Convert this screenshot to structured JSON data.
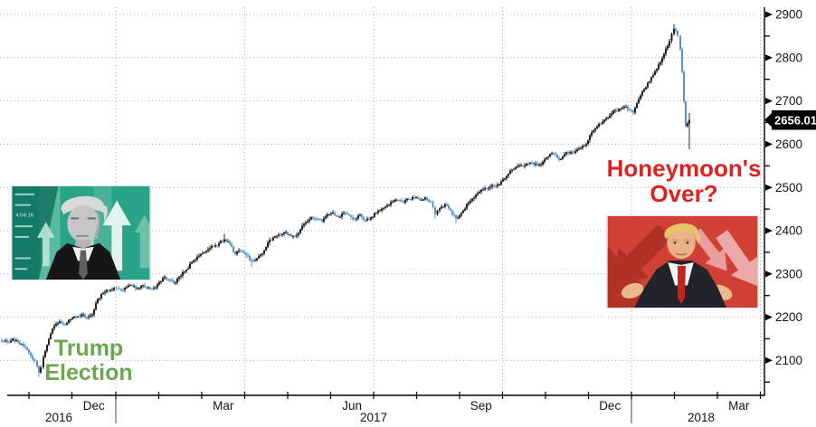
{
  "chart_data": {
    "type": "candlestick",
    "title": "",
    "description": "S&P 500 daily candlestick chart, Oct 2016 - Feb 2018",
    "last_price": "2656.01",
    "x_axis": {
      "month_labels": [
        {
          "label": "Dec",
          "x": 103.8
        },
        {
          "label": "Mar",
          "x": 246.8
        },
        {
          "label": "Jun",
          "x": 389.2
        },
        {
          "label": "Sep",
          "x": 531.8
        },
        {
          "label": "Dec",
          "x": 674.2
        },
        {
          "label": "Mar",
          "x": 816.8
        }
      ],
      "year_labels": [
        {
          "label": "2016",
          "x": 65
        },
        {
          "label": "2017",
          "x": 413
        },
        {
          "label": "2018",
          "x": 775
        }
      ],
      "month_tick_x": [
        32,
        79.5,
        128,
        175.5,
        223,
        270.5,
        318,
        365.5,
        413,
        460.5,
        508,
        555.5,
        603,
        650.5,
        698,
        745.5,
        793,
        840.5
      ],
      "quarter_gridline_x": [
        128,
        270.5,
        413,
        555.5,
        698,
        840.5
      ],
      "year_separator_x": [
        128,
        698
      ]
    },
    "y_axis": {
      "major_ticks": [
        2900,
        2800,
        2700,
        2600,
        2500,
        2400,
        2300,
        2200,
        2100
      ],
      "minor_step": 50,
      "ylim": [
        2040,
        2915
      ],
      "side": "right"
    },
    "keypoints_note": "x is pixel position along time axis (Oct 2016 - Mar 2018); p is price; optional lo/hi wick extremes",
    "keypoints": [
      [
        2,
        2145
      ],
      [
        8,
        2142
      ],
      [
        14,
        2150
      ],
      [
        20,
        2142
      ],
      [
        26,
        2133
      ],
      [
        32,
        2118
      ],
      [
        38,
        2098
      ],
      [
        41,
        2086
      ],
      [
        43,
        2072,
        2062,
        null
      ],
      [
        45,
        2084
      ],
      [
        48,
        2108
      ],
      [
        52,
        2136
      ],
      [
        56,
        2162
      ],
      [
        60,
        2180
      ],
      [
        66,
        2190
      ],
      [
        72,
        2183
      ],
      [
        78,
        2195
      ],
      [
        84,
        2201
      ],
      [
        90,
        2206
      ],
      [
        96,
        2199
      ],
      [
        102,
        2206
      ],
      [
        108,
        2242
      ],
      [
        114,
        2256
      ],
      [
        120,
        2262
      ],
      [
        126,
        2268
      ],
      [
        134,
        2263
      ],
      [
        140,
        2270
      ],
      [
        146,
        2272
      ],
      [
        152,
        2267
      ],
      [
        158,
        2274
      ],
      [
        164,
        2269
      ],
      [
        170,
        2267
      ],
      [
        176,
        2281
      ],
      [
        182,
        2293
      ],
      [
        188,
        2286
      ],
      [
        194,
        2280
      ],
      [
        200,
        2296
      ],
      [
        206,
        2310
      ],
      [
        212,
        2327
      ],
      [
        218,
        2340
      ],
      [
        224,
        2349
      ],
      [
        230,
        2357
      ],
      [
        236,
        2364
      ],
      [
        242,
        2371
      ],
      [
        248,
        2380,
        null,
        2393
      ],
      [
        254,
        2369
      ],
      [
        260,
        2346
      ],
      [
        266,
        2353
      ],
      [
        272,
        2343
      ],
      [
        278,
        2330,
        2316,
        null
      ],
      [
        284,
        2336
      ],
      [
        290,
        2347
      ],
      [
        296,
        2372
      ],
      [
        302,
        2384
      ],
      [
        308,
        2391
      ],
      [
        314,
        2396
      ],
      [
        320,
        2391
      ],
      [
        326,
        2387
      ],
      [
        332,
        2403
      ],
      [
        338,
        2419
      ],
      [
        344,
        2431
      ],
      [
        350,
        2427
      ],
      [
        356,
        2421
      ],
      [
        362,
        2437
      ],
      [
        368,
        2442
      ],
      [
        374,
        2431
      ],
      [
        380,
        2441
      ],
      [
        386,
        2435
      ],
      [
        392,
        2427
      ],
      [
        398,
        2437
      ],
      [
        404,
        2424
      ],
      [
        410,
        2431
      ],
      [
        416,
        2441
      ],
      [
        422,
        2451
      ],
      [
        428,
        2459
      ],
      [
        434,
        2467
      ],
      [
        440,
        2471
      ],
      [
        446,
        2465
      ],
      [
        452,
        2473
      ],
      [
        458,
        2477
      ],
      [
        464,
        2471
      ],
      [
        470,
        2477
      ],
      [
        476,
        2467
      ],
      [
        481,
        2438,
        2428,
        null
      ],
      [
        486,
        2451
      ],
      [
        492,
        2461
      ],
      [
        498,
        2447
      ],
      [
        504,
        2429,
        2417,
        null
      ],
      [
        510,
        2441
      ],
      [
        516,
        2461
      ],
      [
        522,
        2474
      ],
      [
        528,
        2487
      ],
      [
        534,
        2495
      ],
      [
        540,
        2499
      ],
      [
        546,
        2504
      ],
      [
        552,
        2507
      ],
      [
        558,
        2521
      ],
      [
        564,
        2539
      ],
      [
        570,
        2547
      ],
      [
        576,
        2551
      ],
      [
        582,
        2555
      ],
      [
        588,
        2557
      ],
      [
        594,
        2551
      ],
      [
        600,
        2559
      ],
      [
        606,
        2571
      ],
      [
        612,
        2579
      ],
      [
        618,
        2564
      ],
      [
        624,
        2577
      ],
      [
        630,
        2581
      ],
      [
        636,
        2584
      ],
      [
        642,
        2591
      ],
      [
        648,
        2601
      ],
      [
        654,
        2627
      ],
      [
        660,
        2641
      ],
      [
        666,
        2651
      ],
      [
        672,
        2661
      ],
      [
        678,
        2678
      ],
      [
        684,
        2681
      ],
      [
        690,
        2687
      ],
      [
        696,
        2679
      ],
      [
        700,
        2673
      ],
      [
        704,
        2695
      ],
      [
        708,
        2713
      ],
      [
        712,
        2727
      ],
      [
        716,
        2742
      ],
      [
        720,
        2755
      ],
      [
        724,
        2769
      ],
      [
        728,
        2784
      ],
      [
        732,
        2799
      ],
      [
        736,
        2821
      ],
      [
        740,
        2839
      ],
      [
        745,
        2867,
        null,
        2878
      ],
      [
        749,
        2851
      ],
      [
        752,
        2819
      ],
      [
        754,
        2767
      ],
      [
        756,
        2699
      ],
      [
        758,
        2642
      ],
      [
        762,
        2656.01,
        2588,
        2672
      ]
    ],
    "annotations": [
      {
        "line1": "Trump",
        "line2": "Election",
        "color": "#6aa84f"
      },
      {
        "line1": "Honeymoon's",
        "line2": "Over?",
        "color": "#dd2222"
      }
    ]
  },
  "images": {
    "left": {
      "desc": "Donald Trump portrait on teal background with rising arrows",
      "ticker_text": "4:04.16"
    },
    "right": {
      "desc": "Donald Trump shrugging on red background with falling arrows"
    }
  },
  "colors": {
    "up_candle": "#141414",
    "down_candle": "#4f8fc4",
    "grid": "#adadad",
    "axis": "#000000",
    "tag_bg": "#000000",
    "tag_text": "#ffffff",
    "teal_bg": "#2aa488",
    "red_bg": "#d04034"
  }
}
